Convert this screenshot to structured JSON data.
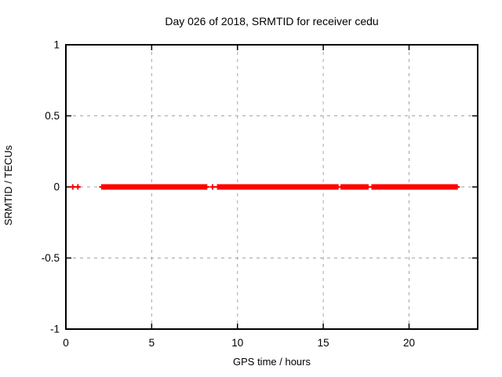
{
  "chart_data": {
    "type": "scatter",
    "title": "Day 026 of 2018, SRMTID for receiver cedu",
    "xlabel": "GPS time / hours",
    "ylabel": "SRMTID / TECUs",
    "xlim": [
      0,
      24
    ],
    "ylim": [
      -1,
      1
    ],
    "xticks": [
      0,
      5,
      10,
      15,
      20
    ],
    "xtick_labels": [
      "0",
      "5",
      "10",
      "15",
      "20"
    ],
    "yticks": [
      -1,
      -0.5,
      0,
      0.5,
      1
    ],
    "ytick_labels": [
      "-1",
      "-0.5",
      "0",
      "0.5",
      "1"
    ],
    "grid": true,
    "grid_color": "#a6a6a6",
    "border_color": "#000000",
    "background_color": "#ffffff",
    "legend": "none",
    "marker": "plus",
    "series_color": "#ff0000",
    "series_y_value": 0,
    "isolated_points_x": [
      0.4,
      0.7,
      8.55
    ],
    "segments_x": [
      [
        2.1,
        8.2
      ],
      [
        8.85,
        15.85
      ],
      [
        16.05,
        17.6
      ],
      [
        17.85,
        22.8
      ]
    ]
  }
}
